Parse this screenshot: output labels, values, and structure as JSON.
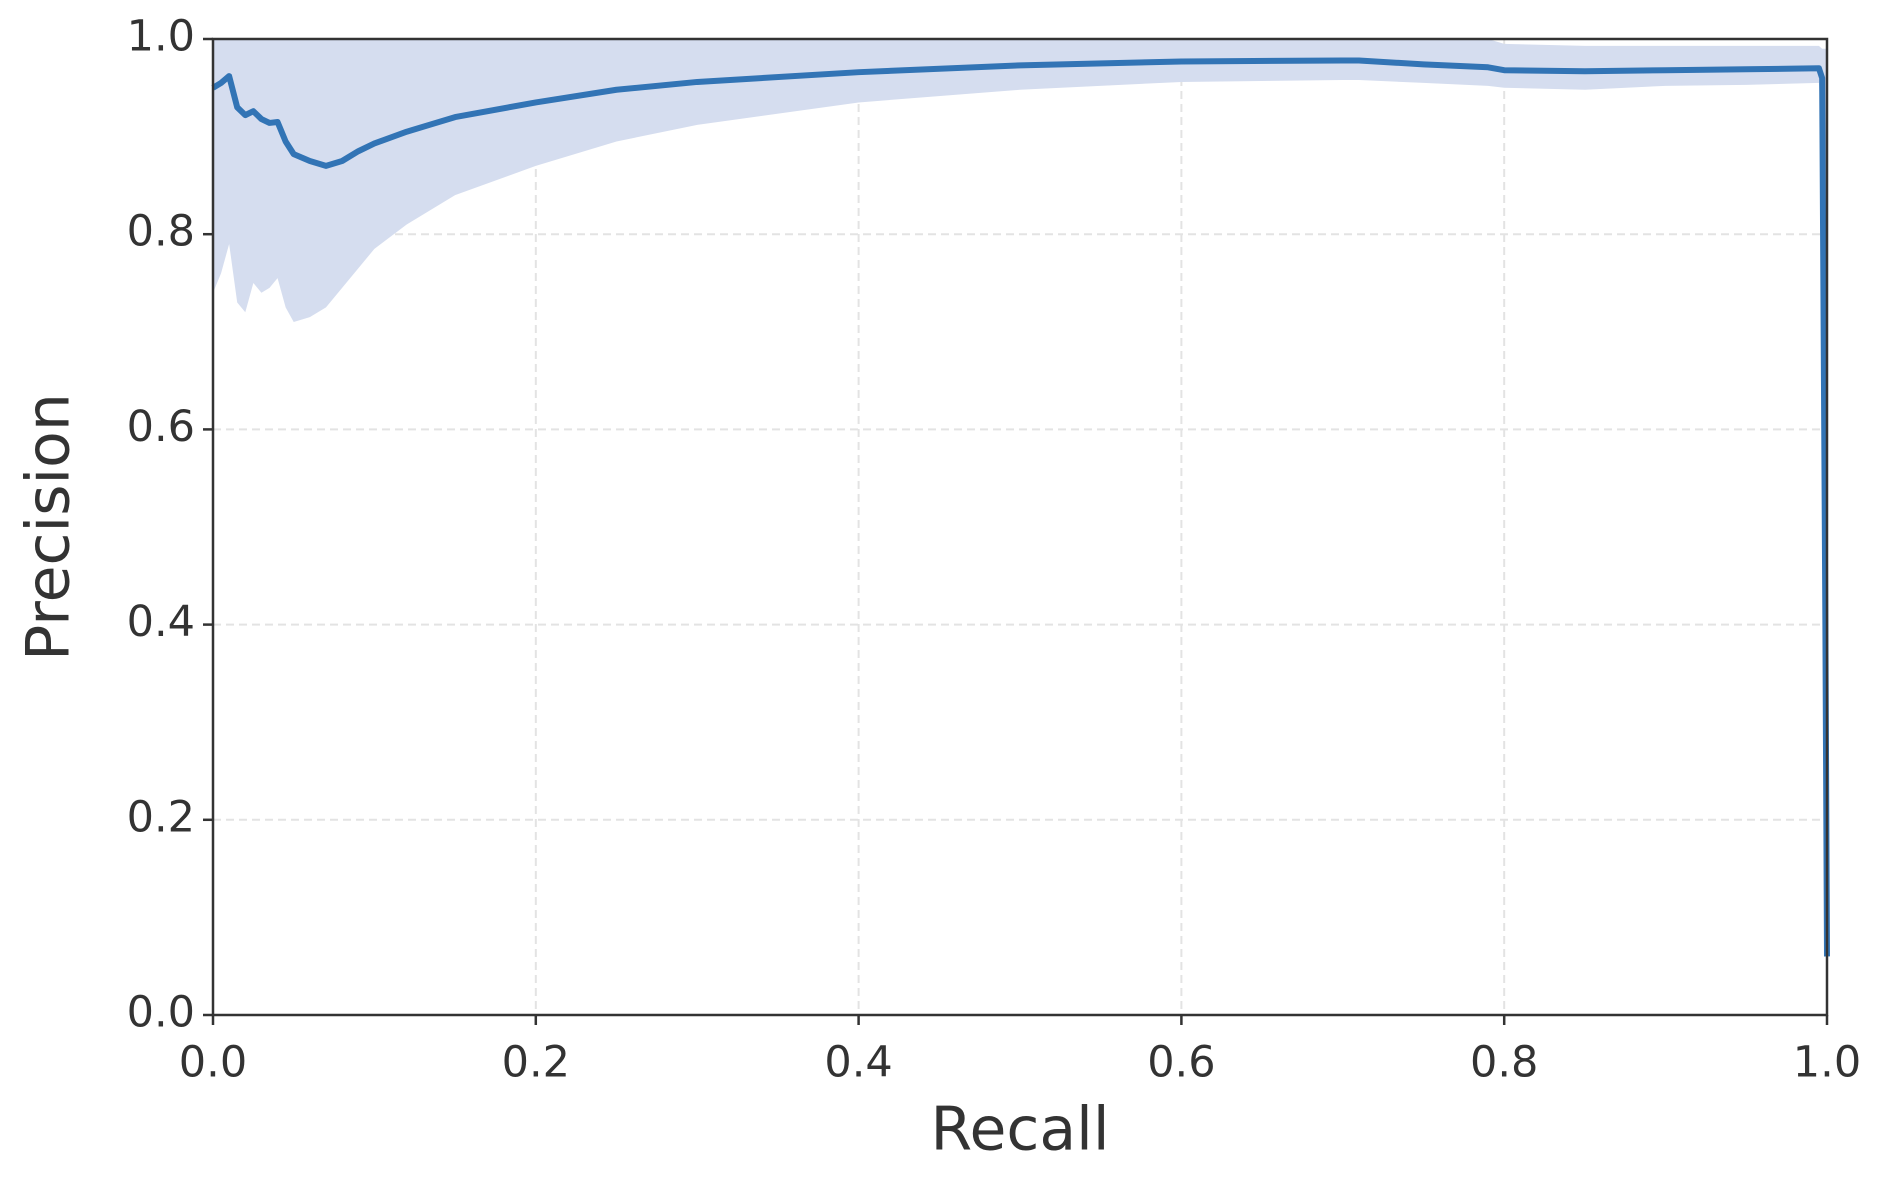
{
  "chart_data": {
    "type": "line",
    "x_label": "Recall",
    "y_label": "Precision",
    "x": [
      0,
      0.005,
      0.01,
      0.015,
      0.02,
      0.025,
      0.03,
      0.035,
      0.04,
      0.045,
      0.05,
      0.06,
      0.07,
      0.08,
      0.09,
      0.1,
      0.12,
      0.15,
      0.2,
      0.25,
      0.3,
      0.4,
      0.5,
      0.6,
      0.7,
      0.71,
      0.75,
      0.79,
      0.8,
      0.85,
      0.9,
      0.95,
      0.995,
      0.997,
      0.999,
      1.0
    ],
    "series": [
      {
        "color": "#3274b5",
        "values": [
          0.95,
          0.955,
          0.962,
          0.93,
          0.922,
          0.926,
          0.918,
          0.914,
          0.915,
          0.895,
          0.882,
          0.875,
          0.87,
          0.875,
          0.885,
          0.893,
          0.905,
          0.92,
          0.935,
          0.948,
          0.956,
          0.966,
          0.973,
          0.977,
          0.978,
          0.978,
          0.974,
          0.971,
          0.968,
          0.967,
          0.968,
          0.969,
          0.97,
          0.96,
          0.4,
          0.06
        ],
        "band_color": "#d5ddef",
        "upper": [
          1,
          1,
          1,
          1,
          1,
          1,
          1,
          1,
          1,
          1,
          1,
          1,
          1,
          1,
          1,
          1,
          1,
          1,
          1,
          1,
          1,
          1,
          1,
          1,
          1,
          1,
          1,
          1,
          0.995,
          0.993,
          0.993,
          0.993,
          0.993,
          0.99,
          0.99,
          0.99
        ],
        "lower": [
          0.74,
          0.76,
          0.79,
          0.73,
          0.72,
          0.75,
          0.74,
          0.745,
          0.755,
          0.725,
          0.71,
          0.715,
          0.725,
          0.745,
          0.765,
          0.785,
          0.81,
          0.84,
          0.87,
          0.895,
          0.912,
          0.935,
          0.948,
          0.956,
          0.958,
          0.958,
          0.955,
          0.952,
          0.95,
          0.948,
          0.952,
          0.953,
          0.955,
          0.9,
          0.3,
          0.05
        ]
      }
    ],
    "xlim": [
      0,
      1
    ],
    "ylim": [
      0,
      1
    ],
    "xticks": [
      {
        "value": 0,
        "label": "0.0"
      },
      0.2,
      0.4,
      0.6,
      0.8,
      {
        "value": 1,
        "label": "1.0"
      }
    ],
    "yticks": [
      {
        "value": 0,
        "label": "0.0"
      },
      0.2,
      0.4,
      0.6,
      0.8,
      {
        "value": 1,
        "label": "1.0"
      }
    ],
    "grid": true
  }
}
